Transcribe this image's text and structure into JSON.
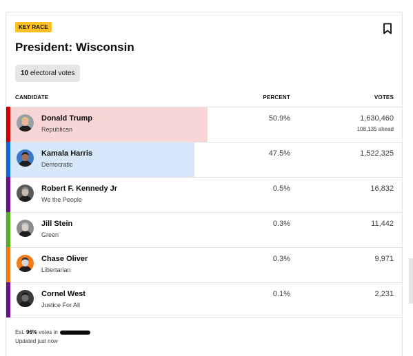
{
  "badge": "KEY RACE",
  "title": "President: Wisconsin",
  "electoral": {
    "count": "10",
    "label": "electoral votes"
  },
  "columns": {
    "candidate": "CANDIDATE",
    "percent": "PERCENT",
    "votes": "VOTES"
  },
  "candidates": [
    {
      "name": "Donald Trump",
      "party": "Republican",
      "percent": "50.9%",
      "votes": "1,630,460",
      "ahead": "108,135 ahead",
      "stripe_color": "#cc0000",
      "fill_color": "#f9d6d6",
      "bar_fraction": 0.509,
      "skin": "#e9b59a",
      "hair": "#e2c27a",
      "bg": "#9aa0a8",
      "icon": "avatar-photo"
    },
    {
      "name": "Kamala Harris",
      "party": "Democratic",
      "percent": "47.5%",
      "votes": "1,522,325",
      "stripe_color": "#0c6ad8",
      "fill_color": "#d8e8fb",
      "bar_fraction": 0.475,
      "skin": "#a0705a",
      "hair": "#2b1d17",
      "bg": "#3d78c4",
      "icon": "avatar-photo"
    },
    {
      "name": "Robert F. Kennedy Jr",
      "party": "We the People",
      "percent": "0.5%",
      "votes": "16,832",
      "stripe_color": "#6c0f8a",
      "skin": "#c9b9b0",
      "hair": "#8c8c8c",
      "bg": "#5a5a5a",
      "icon": "avatar-photo"
    },
    {
      "name": "Jill Stein",
      "party": "Green",
      "percent": "0.3%",
      "votes": "11,442",
      "stripe_color": "#55b11e",
      "skin": "#d9d0c8",
      "hair": "#b9b9b9",
      "bg": "#8c8c8c",
      "icon": "avatar-photo"
    },
    {
      "name": "Chase Oliver",
      "party": "Libertarian",
      "percent": "0.3%",
      "votes": "9,971",
      "stripe_color": "#f07c1a",
      "skin": "#d6d6d6",
      "hair": "#3a3a3a",
      "bg": "#f07c1a",
      "icon": "avatar-photo"
    },
    {
      "name": "Cornel West",
      "party": "Justice For All",
      "percent": "0.1%",
      "votes": "2,231",
      "stripe_color": "#6c0f8a",
      "skin": "#6b6b6b",
      "hair": "#1c1c1c",
      "bg": "#3a3a3a",
      "icon": "avatar-photo"
    }
  ],
  "footer": {
    "prefix": "Est.",
    "value": "96%",
    "suffix": "votes in",
    "updated": "Updated just now"
  }
}
